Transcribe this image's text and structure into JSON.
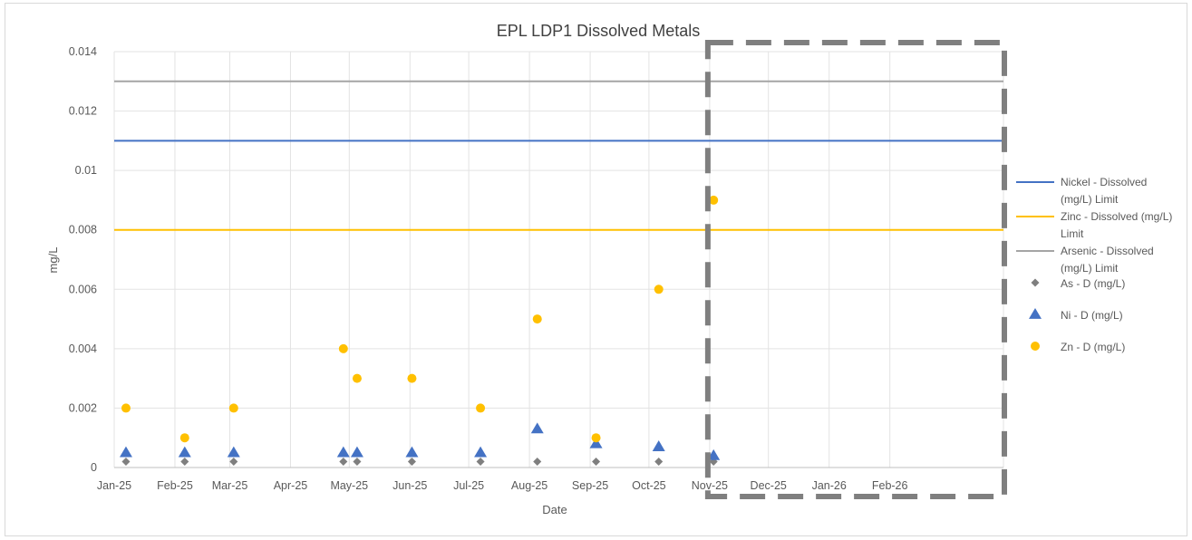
{
  "chart_data": {
    "type": "scatter",
    "title": "EPL LDP1 Dissolved Metals",
    "xlabel": "Date",
    "ylabel": "mg/L",
    "ylim": [
      0,
      0.014
    ],
    "xlim": [
      "2025-01-01",
      "2026-03-31"
    ],
    "grid": true,
    "legend_position": "right",
    "y_ticks": [
      "0",
      "0.002",
      "0.004",
      "0.006",
      "0.008",
      "0.01",
      "0.012",
      "0.014"
    ],
    "x_ticks": [
      {
        "label": "Jan-25",
        "date": "2025-01-01"
      },
      {
        "label": "Feb-25",
        "date": "2025-02-01"
      },
      {
        "label": "Mar-25",
        "date": "2025-03-01"
      },
      {
        "label": "Apr-25",
        "date": "2025-04-01"
      },
      {
        "label": "May-25",
        "date": "2025-05-01"
      },
      {
        "label": "Jun-25",
        "date": "2025-06-01"
      },
      {
        "label": "Jul-25",
        "date": "2025-07-01"
      },
      {
        "label": "Aug-25",
        "date": "2025-08-01"
      },
      {
        "label": "Sep-25",
        "date": "2025-09-01"
      },
      {
        "label": "Oct-25",
        "date": "2025-10-01"
      },
      {
        "label": "Nov-25",
        "date": "2025-11-01"
      },
      {
        "label": "Dec-25",
        "date": "2025-12-01"
      },
      {
        "label": "Jan-26",
        "date": "2026-01-01"
      },
      {
        "label": "Feb-26",
        "date": "2026-02-01"
      }
    ],
    "limit_lines": [
      {
        "name": "Nickel - Dissolved (mg/L) Limit",
        "legend_lines": [
          "Nickel - Dissolved",
          "(mg/L) Limit"
        ],
        "value": 0.011,
        "color": "#4472c4"
      },
      {
        "name": "Zinc - Dissolved (mg/L) Limit",
        "legend_lines": [
          "Zinc - Dissolved (mg/L)",
          "Limit"
        ],
        "value": 0.008,
        "color": "#ffc000"
      },
      {
        "name": "Arsenic - Dissolved (mg/L) Limit",
        "legend_lines": [
          "Arsenic - Dissolved",
          "(mg/L) Limit"
        ],
        "value": 0.013,
        "color": "#a5a5a5"
      }
    ],
    "series": [
      {
        "name": "As - D (mg/L)",
        "marker": "diamond",
        "color": "#7f7f7f",
        "points": [
          {
            "x": "2025-01-07",
            "y": 0.0002
          },
          {
            "x": "2025-02-06",
            "y": 0.0002
          },
          {
            "x": "2025-03-03",
            "y": 0.0002
          },
          {
            "x": "2025-04-28",
            "y": 0.0002
          },
          {
            "x": "2025-05-05",
            "y": 0.0002
          },
          {
            "x": "2025-06-02",
            "y": 0.0002
          },
          {
            "x": "2025-07-07",
            "y": 0.0002
          },
          {
            "x": "2025-08-05",
            "y": 0.0002
          },
          {
            "x": "2025-09-04",
            "y": 0.0002
          },
          {
            "x": "2025-10-06",
            "y": 0.0002
          },
          {
            "x": "2025-11-03",
            "y": 0.0002
          }
        ]
      },
      {
        "name": "Ni - D (mg/L)",
        "marker": "triangle",
        "color": "#4472c4",
        "points": [
          {
            "x": "2025-01-07",
            "y": 0.0005
          },
          {
            "x": "2025-02-06",
            "y": 0.0005
          },
          {
            "x": "2025-03-03",
            "y": 0.0005
          },
          {
            "x": "2025-04-28",
            "y": 0.0005
          },
          {
            "x": "2025-05-05",
            "y": 0.0005
          },
          {
            "x": "2025-06-02",
            "y": 0.0005
          },
          {
            "x": "2025-07-07",
            "y": 0.0005
          },
          {
            "x": "2025-08-05",
            "y": 0.0013
          },
          {
            "x": "2025-09-04",
            "y": 0.0008
          },
          {
            "x": "2025-10-06",
            "y": 0.0007
          },
          {
            "x": "2025-11-03",
            "y": 0.0004
          }
        ]
      },
      {
        "name": "Zn - D (mg/L)",
        "marker": "circle",
        "color": "#ffc000",
        "points": [
          {
            "x": "2025-01-07",
            "y": 0.002
          },
          {
            "x": "2025-02-06",
            "y": 0.001
          },
          {
            "x": "2025-03-03",
            "y": 0.002
          },
          {
            "x": "2025-04-28",
            "y": 0.004
          },
          {
            "x": "2025-05-05",
            "y": 0.003
          },
          {
            "x": "2025-06-02",
            "y": 0.003
          },
          {
            "x": "2025-07-07",
            "y": 0.002
          },
          {
            "x": "2025-08-05",
            "y": 0.005
          },
          {
            "x": "2025-09-04",
            "y": 0.001
          },
          {
            "x": "2025-10-06",
            "y": 0.006
          },
          {
            "x": "2025-11-03",
            "y": 0.009
          }
        ]
      }
    ],
    "highlight_box": {
      "from": "2025-11-01",
      "to": "2026-03-31",
      "color": "#7f7f7f",
      "style": "dashed"
    }
  }
}
